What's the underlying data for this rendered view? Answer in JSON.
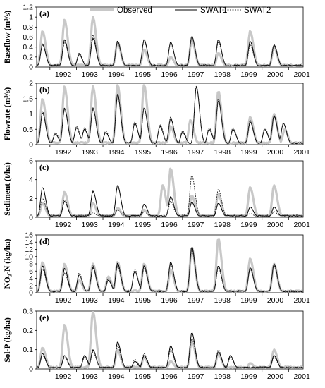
{
  "legend": {
    "observed": "Observed",
    "swat1": "SWAT1",
    "swat2": "SWAT2"
  },
  "colors": {
    "observed": "#c8c8c8",
    "swat1": "#000000",
    "swat2": "#333333"
  },
  "chart_data": [
    {
      "type": "line",
      "panel_label": "(a)",
      "ylabel": "Baseflow (m³/s)",
      "ylim": [
        0,
        1.2
      ],
      "yticks": [
        "0",
        "0.2",
        "0.4",
        "0.6",
        "0.8",
        "1",
        "1.2"
      ],
      "xticks": [
        "1992",
        "1993",
        "1994",
        "1995",
        "1996",
        "1997",
        "1998",
        "1999",
        "2000",
        "2001"
      ],
      "x_start_year": 1991.5,
      "peaks": {
        "observed": [
          [
            1991.72,
            0.72
          ],
          [
            1992.55,
            0.95
          ],
          [
            1993.62,
            1.0
          ],
          [
            1994.55,
            0.5
          ],
          [
            1995.55,
            0.35
          ],
          [
            1996.55,
            0.2
          ],
          [
            1997.35,
            0.55
          ],
          [
            1998.35,
            0.28
          ],
          [
            1999.55,
            0.72
          ],
          [
            2000.45,
            0.4
          ]
        ],
        "swat1": [
          [
            1991.72,
            0.45
          ],
          [
            1992.55,
            0.55
          ],
          [
            1993.1,
            0.25
          ],
          [
            1993.62,
            0.58
          ],
          [
            1994.55,
            0.52
          ],
          [
            1995.55,
            0.55
          ],
          [
            1996.55,
            0.5
          ],
          [
            1997.35,
            0.62
          ],
          [
            1998.35,
            0.55
          ],
          [
            1999.55,
            0.52
          ],
          [
            2000.45,
            0.45
          ]
        ],
        "swat2": [
          [
            1991.72,
            0.48
          ],
          [
            1992.55,
            0.5
          ],
          [
            1993.1,
            0.28
          ],
          [
            1993.62,
            0.65
          ],
          [
            1994.55,
            0.5
          ],
          [
            1995.55,
            0.52
          ],
          [
            1996.55,
            0.48
          ],
          [
            1997.35,
            0.6
          ],
          [
            1998.35,
            0.5
          ],
          [
            1999.55,
            0.45
          ],
          [
            2000.45,
            0.42
          ]
        ]
      }
    },
    {
      "type": "line",
      "panel_label": "(b)",
      "ylabel": "Flowrate (m³/s)",
      "ylim": [
        0,
        2
      ],
      "yticks": [
        "0",
        "0.5",
        "1",
        "1.5",
        "2"
      ],
      "xticks": [
        "1992",
        "1993",
        "1994",
        "1995",
        "1996",
        "1997",
        "1998",
        "1999",
        "2000",
        "2001"
      ],
      "x_start_year": 1991.5,
      "peaks": {
        "observed": [
          [
            1991.72,
            1.5
          ],
          [
            1992.55,
            1.9
          ],
          [
            1993.62,
            1.9
          ],
          [
            1994.55,
            1.95
          ],
          [
            1995.55,
            1.95
          ],
          [
            1996.55,
            0.6
          ],
          [
            1997.3,
            0.8
          ],
          [
            1998.35,
            1.75
          ],
          [
            1999.55,
            0.9
          ],
          [
            2000.45,
            1.0
          ],
          [
            2000.85,
            0.5
          ]
        ],
        "swat1": [
          [
            1991.72,
            1.05
          ],
          [
            1992.2,
            0.35
          ],
          [
            1992.55,
            1.2
          ],
          [
            1993.0,
            0.55
          ],
          [
            1993.3,
            0.5
          ],
          [
            1993.62,
            1.2
          ],
          [
            1994.1,
            0.4
          ],
          [
            1994.55,
            1.65
          ],
          [
            1995.2,
            0.7
          ],
          [
            1995.55,
            1.2
          ],
          [
            1996.15,
            0.6
          ],
          [
            1996.55,
            0.85
          ],
          [
            1997.0,
            0.4
          ],
          [
            1997.52,
            1.9
          ],
          [
            1998.0,
            0.5
          ],
          [
            1998.35,
            1.45
          ],
          [
            1998.9,
            0.5
          ],
          [
            1999.55,
            0.75
          ],
          [
            2000.1,
            0.5
          ],
          [
            2000.45,
            0.95
          ],
          [
            2000.8,
            0.7
          ]
        ],
        "swat2": [
          [
            1991.72,
            1.1
          ],
          [
            1992.2,
            0.4
          ],
          [
            1992.55,
            1.15
          ],
          [
            1993.0,
            0.6
          ],
          [
            1993.3,
            0.55
          ],
          [
            1993.62,
            1.15
          ],
          [
            1994.1,
            0.45
          ],
          [
            1994.55,
            1.6
          ],
          [
            1995.2,
            0.75
          ],
          [
            1995.55,
            1.2
          ],
          [
            1996.15,
            0.65
          ],
          [
            1996.55,
            0.9
          ],
          [
            1997.0,
            0.45
          ],
          [
            1997.52,
            1.95
          ],
          [
            1998.0,
            0.55
          ],
          [
            1998.35,
            1.5
          ],
          [
            1998.9,
            0.55
          ],
          [
            1999.55,
            0.8
          ],
          [
            2000.1,
            0.55
          ],
          [
            2000.45,
            0.9
          ],
          [
            2000.8,
            0.7
          ]
        ]
      }
    },
    {
      "type": "line",
      "panel_label": "(c)",
      "ylabel": "Sediment (t/ha)",
      "ylim": [
        0,
        6
      ],
      "yticks": [
        "0",
        "2",
        "4",
        "6"
      ],
      "xticks": [
        "1992",
        "1993",
        "1994",
        "1995",
        "1996",
        "1997",
        "1998",
        "1999",
        "2000",
        "2001"
      ],
      "x_start_year": 1991.5,
      "peaks": {
        "observed": [
          [
            1991.72,
            1.5
          ],
          [
            1992.55,
            2.7
          ],
          [
            1993.62,
            1.5
          ],
          [
            1994.55,
            1.0
          ],
          [
            1995.55,
            0.8
          ],
          [
            1996.25,
            3.4
          ],
          [
            1996.55,
            5.2
          ],
          [
            1997.35,
            2.3
          ],
          [
            1998.35,
            2.5
          ],
          [
            1999.55,
            3.2
          ],
          [
            2000.45,
            3.4
          ]
        ],
        "swat1": [
          [
            1991.72,
            3.2
          ],
          [
            1992.55,
            1.7
          ],
          [
            1993.62,
            2.8
          ],
          [
            1994.55,
            3.4
          ],
          [
            1995.55,
            1.4
          ],
          [
            1996.55,
            2.2
          ],
          [
            1997.35,
            1.6
          ],
          [
            1998.35,
            1.5
          ],
          [
            1999.55,
            1.1
          ],
          [
            2000.45,
            1.1
          ]
        ],
        "swat2": [
          [
            1991.72,
            2.0
          ],
          [
            1992.55,
            1.9
          ],
          [
            1993.62,
            0.5
          ],
          [
            1994.55,
            0.8
          ],
          [
            1995.55,
            0.6
          ],
          [
            1996.55,
            1.7
          ],
          [
            1997.35,
            4.5
          ],
          [
            1998.35,
            3.0
          ],
          [
            1999.55,
            0.4
          ],
          [
            2000.45,
            0.6
          ]
        ]
      }
    },
    {
      "type": "line",
      "panel_label": "(d)",
      "ylabel": "NO₃-N (kg/ha)",
      "ylim": [
        0,
        16
      ],
      "yticks": [
        "0",
        "2",
        "4",
        "6",
        "8",
        "10",
        "12",
        "14",
        "16"
      ],
      "xticks": [
        "1992",
        "1993",
        "1994",
        "1995",
        "1996",
        "1997",
        "1998",
        "1999",
        "2000",
        "2001"
      ],
      "x_start_year": 1991.5,
      "peaks": {
        "observed": [
          [
            1991.72,
            8.5
          ],
          [
            1992.55,
            8.0
          ],
          [
            1993.1,
            3.5
          ],
          [
            1993.62,
            8.0
          ],
          [
            1994.2,
            4.5
          ],
          [
            1994.55,
            8.5
          ],
          [
            1995.55,
            8.0
          ],
          [
            1996.55,
            6.5
          ],
          [
            1997.35,
            12.5
          ],
          [
            1998.35,
            15.0
          ],
          [
            1999.55,
            9.5
          ],
          [
            2000.45,
            8.0
          ]
        ],
        "swat1": [
          [
            1991.72,
            7.5
          ],
          [
            1992.55,
            6.8
          ],
          [
            1993.1,
            5.0
          ],
          [
            1993.62,
            7.0
          ],
          [
            1994.2,
            3.5
          ],
          [
            1994.55,
            8.2
          ],
          [
            1995.2,
            6.0
          ],
          [
            1995.55,
            7.5
          ],
          [
            1996.55,
            8.5
          ],
          [
            1997.35,
            12.8
          ],
          [
            1998.35,
            7.5
          ],
          [
            1999.55,
            7.0
          ],
          [
            2000.45,
            8.0
          ]
        ],
        "swat2": [
          [
            1991.72,
            6.5
          ],
          [
            1992.55,
            5.5
          ],
          [
            1993.1,
            5.5
          ],
          [
            1993.62,
            7.5
          ],
          [
            1994.2,
            4.0
          ],
          [
            1994.55,
            7.5
          ],
          [
            1995.2,
            6.5
          ],
          [
            1995.55,
            7.0
          ],
          [
            1996.55,
            8.0
          ],
          [
            1997.35,
            12.0
          ],
          [
            1998.35,
            7.0
          ],
          [
            1999.55,
            6.5
          ],
          [
            2000.45,
            7.5
          ]
        ]
      }
    },
    {
      "type": "line",
      "panel_label": "(e)",
      "ylabel": "Sol-P (kg/ha)",
      "ylim": [
        0,
        0.3
      ],
      "yticks": [
        "0",
        "0.1",
        "0.2",
        "0.3"
      ],
      "xticks": [
        "1992",
        "1993",
        "1994",
        "1995",
        "1996",
        "1997",
        "1998",
        "1999",
        "2000",
        "2001"
      ],
      "x_start_year": 1991.5,
      "peaks": {
        "observed": [
          [
            1991.72,
            0.11
          ],
          [
            1992.55,
            0.23
          ],
          [
            1993.62,
            0.3
          ],
          [
            1994.55,
            0.1
          ],
          [
            1995.55,
            0.06
          ],
          [
            1996.55,
            0.04
          ],
          [
            1997.35,
            0.15
          ],
          [
            1998.35,
            0.08
          ],
          [
            1999.55,
            0.03
          ],
          [
            2000.45,
            0.1
          ]
        ],
        "swat1": [
          [
            1991.72,
            0.08
          ],
          [
            1992.55,
            0.07
          ],
          [
            1993.3,
            0.07
          ],
          [
            1993.62,
            0.1
          ],
          [
            1994.55,
            0.14
          ],
          [
            1995.2,
            0.04
          ],
          [
            1995.55,
            0.07
          ],
          [
            1996.55,
            0.12
          ],
          [
            1997.35,
            0.19
          ],
          [
            1998.35,
            0.09
          ],
          [
            1998.8,
            0.07
          ],
          [
            2000.45,
            0.07
          ]
        ],
        "swat2": [
          [
            1991.72,
            0.07
          ],
          [
            1992.55,
            0.06
          ],
          [
            1993.3,
            0.06
          ],
          [
            1993.62,
            0.09
          ],
          [
            1994.55,
            0.12
          ],
          [
            1995.2,
            0.05
          ],
          [
            1995.55,
            0.08
          ],
          [
            1996.55,
            0.1
          ],
          [
            1997.35,
            0.16
          ],
          [
            1998.35,
            0.1
          ],
          [
            1998.8,
            0.06
          ],
          [
            2000.45,
            0.06
          ]
        ]
      }
    }
  ]
}
